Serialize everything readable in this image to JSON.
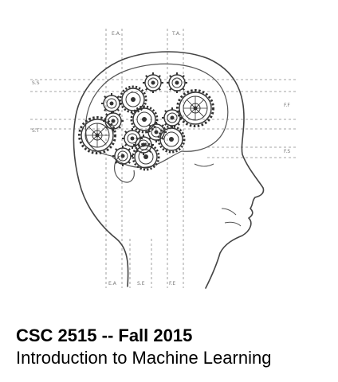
{
  "illustration": {
    "icon": "brain-gears-head-icon",
    "line_color": "#555555",
    "dashed_color": "#888888",
    "guide_labels": {
      "top_left": "E.A.",
      "top_right": "T.A.",
      "left_upper": "S.S",
      "left_lower": "S.T",
      "right_upper": "F.F",
      "right_lower": "F.S",
      "bottom_left": "E.A",
      "bottom_mid": "S.E",
      "bottom_right": "F.E"
    }
  },
  "caption": {
    "title": "CSC 2515 -- Fall 2015",
    "subtitle": "Introduction to Machine Learning"
  }
}
